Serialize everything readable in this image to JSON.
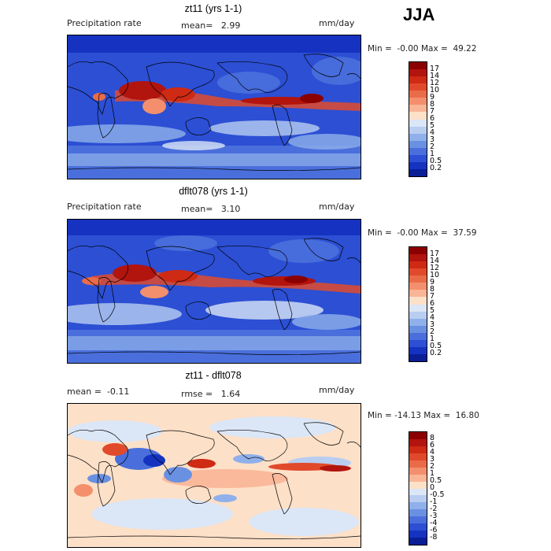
{
  "season": "JJA",
  "panels": [
    {
      "title": "zt11 (yrs 1-1)",
      "field_label": "Precipitation rate",
      "stat_text": "mean=   2.99",
      "unit": "mm/day",
      "minmax": "Min =  -0.00 Max =  49.22",
      "colorbar_labels": [
        "17",
        "14",
        "12",
        "10",
        "9",
        "8",
        "7",
        "6",
        "5",
        "4",
        "3",
        "2",
        "1",
        "0.5",
        "0.2"
      ],
      "colorbar_colors": [
        "#8b0000",
        "#b2140e",
        "#cf2a14",
        "#e04a2a",
        "#ea6b48",
        "#f38f6c",
        "#f9b596",
        "#fde0c8",
        "#dbe6f6",
        "#b8cdf0",
        "#8fb0ea",
        "#6a90e2",
        "#4a6fdc",
        "#2c4fd4",
        "#1533c0",
        "#0a1e96"
      ]
    },
    {
      "title": "dflt078 (yrs 1-1)",
      "field_label": "Precipitation rate",
      "stat_text": "mean=   3.10",
      "unit": "mm/day",
      "minmax": "Min =  -0.00 Max =  37.59",
      "colorbar_labels": [
        "17",
        "14",
        "12",
        "10",
        "9",
        "8",
        "7",
        "6",
        "5",
        "4",
        "3",
        "2",
        "1",
        "0.5",
        "0.2"
      ],
      "colorbar_colors": [
        "#8b0000",
        "#b2140e",
        "#cf2a14",
        "#e04a2a",
        "#ea6b48",
        "#f38f6c",
        "#f9b596",
        "#fde0c8",
        "#dbe6f6",
        "#b8cdf0",
        "#8fb0ea",
        "#6a90e2",
        "#4a6fdc",
        "#2c4fd4",
        "#1533c0",
        "#0a1e96"
      ]
    },
    {
      "title": "zt11 - dflt078",
      "field_label": "mean =  -0.11",
      "stat_text": "rmse =   1.64",
      "unit": "mm/day",
      "minmax": "Min = -14.13 Max =  16.80",
      "colorbar_labels": [
        "8",
        "6",
        "4",
        "3",
        "2",
        "1",
        "0.5",
        "0",
        "-0.5",
        "-1",
        "-2",
        "-3",
        "-4",
        "-6",
        "-8"
      ],
      "colorbar_colors": [
        "#8b0000",
        "#b2140e",
        "#cf2a14",
        "#e04a2a",
        "#ea6b48",
        "#f38f6c",
        "#f9b596",
        "#fde0c8",
        "#dbe6f6",
        "#b8cdf0",
        "#8fb0ea",
        "#6a90e2",
        "#4a6fdc",
        "#2c4fd4",
        "#1533c0",
        "#0a1e96"
      ]
    }
  ]
}
